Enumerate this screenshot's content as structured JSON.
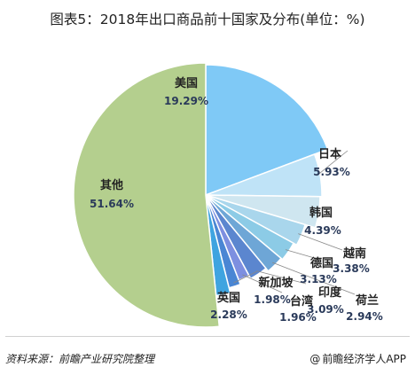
{
  "title": "图表5：2018年出口商品前十国家及分布(单位：%)",
  "source": "资料来源：前瞻产业研究院整理",
  "brand": "前瞻经济学人APP",
  "brand_icon": "at-icon",
  "chart_data": {
    "type": "pie",
    "title": "图表5：2018年出口商品前十国家及分布(单位：%)",
    "unit": "%",
    "slices": [
      {
        "name": "美国",
        "value": 19.29,
        "label": "19.29%",
        "color": "#7fc9f6"
      },
      {
        "name": "日本",
        "value": 5.93,
        "label": "5.93%",
        "color": "#bfe3f7"
      },
      {
        "name": "韩国",
        "value": 4.39,
        "label": "4.39%",
        "color": "#cfe6f0"
      },
      {
        "name": "越南",
        "value": 3.38,
        "label": "3.38%",
        "color": "#a9d6ec"
      },
      {
        "name": "德国",
        "value": 3.13,
        "label": "3.13%",
        "color": "#8ccbe6"
      },
      {
        "name": "荷兰",
        "value": 2.94,
        "label": "2.94%",
        "color": "#6ea6d6"
      },
      {
        "name": "印度",
        "value": 3.09,
        "label": "3.09%",
        "color": "#5b86cf"
      },
      {
        "name": "台湾",
        "value": 1.96,
        "label": "1.96%",
        "color": "#7d8fe0"
      },
      {
        "name": "新加坡",
        "value": 1.98,
        "label": "1.98%",
        "color": "#4a86d4"
      },
      {
        "name": "英国",
        "value": 2.28,
        "label": "2.28%",
        "color": "#3fa4e0"
      },
      {
        "name": "其他",
        "value": 51.64,
        "label": "51.64%",
        "color": "#b4cf8e"
      }
    ]
  }
}
